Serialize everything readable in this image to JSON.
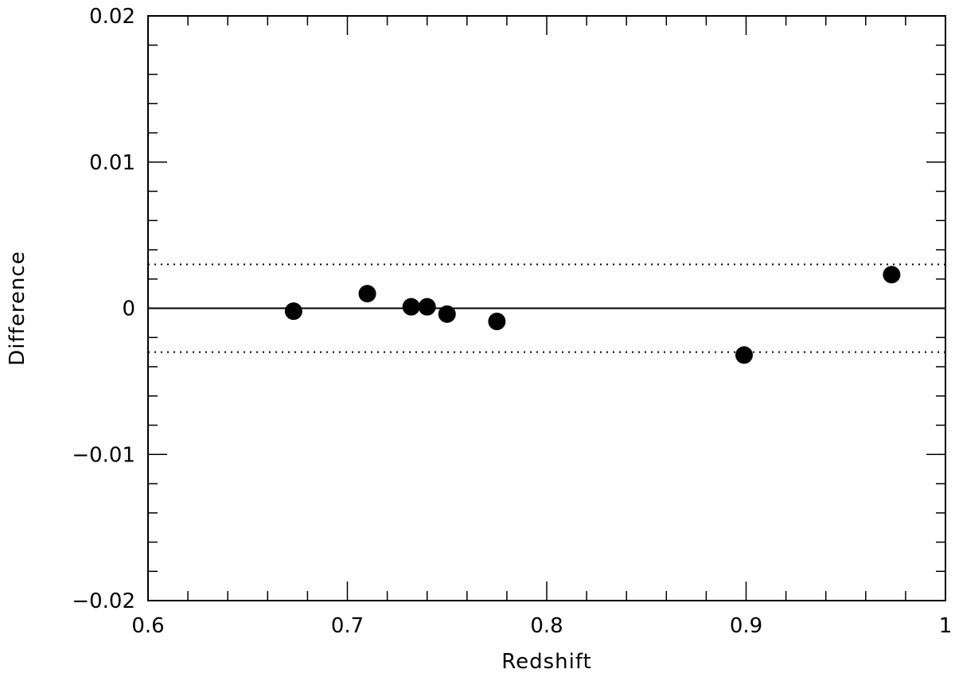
{
  "chart_data": {
    "type": "scatter",
    "title": "",
    "xlabel": "Redshift",
    "ylabel": "Difference",
    "xlim": [
      0.6,
      1.0
    ],
    "ylim": [
      -0.02,
      0.02
    ],
    "x_ticks": [
      0.6,
      0.7,
      0.8,
      0.9,
      1.0
    ],
    "x_tick_labels": [
      "0.6",
      "0.7",
      "0.8",
      "0.9",
      "1"
    ],
    "x_minor_step": 0.02,
    "y_ticks": [
      -0.02,
      -0.01,
      0,
      0.01,
      0.02
    ],
    "y_tick_labels": [
      "−0.02",
      "−0.01",
      "0",
      "0.01",
      "0.02"
    ],
    "y_minor_step": 0.002,
    "grid": false,
    "legend": "none",
    "series": [
      {
        "points": [
          {
            "x": 0.673,
            "y": -0.0002
          },
          {
            "x": 0.71,
            "y": 0.001
          },
          {
            "x": 0.732,
            "y": 0.0001
          },
          {
            "x": 0.74,
            "y": 0.0001
          },
          {
            "x": 0.75,
            "y": -0.0004
          },
          {
            "x": 0.775,
            "y": -0.0009
          },
          {
            "x": 0.899,
            "y": -0.0032
          },
          {
            "x": 0.973,
            "y": 0.0023
          }
        ]
      }
    ],
    "reference_lines": [
      {
        "y": 0,
        "style": "solid"
      },
      {
        "y": 0.003,
        "style": "dotted"
      },
      {
        "y": -0.003,
        "style": "dotted"
      }
    ],
    "marker_color": "#000000"
  }
}
